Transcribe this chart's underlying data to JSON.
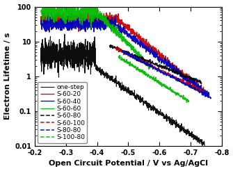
{
  "title": "",
  "xlabel": "Open Circuit Potential / V vs Ag/AgCl",
  "ylabel": "Electron Lifetime / s",
  "xlim": [
    -0.2,
    -0.8
  ],
  "ylim": [
    0.01,
    100
  ],
  "series": [
    {
      "label": "one-step",
      "color": "#000000",
      "linestyle": "solid",
      "lw": 0.8
    },
    {
      "label": "S-60-20",
      "color": "#cc0000",
      "linestyle": "solid",
      "lw": 1.0
    },
    {
      "label": "S-60-40",
      "color": "#0000bb",
      "linestyle": "solid",
      "lw": 1.0
    },
    {
      "label": "S-60-60",
      "color": "#00bb00",
      "linestyle": "solid",
      "lw": 1.0
    },
    {
      "label": "S-60-80",
      "color": "#000000",
      "linestyle": "dashed",
      "lw": 1.1
    },
    {
      "label": "S-60-100",
      "color": "#cc0000",
      "linestyle": "dashed",
      "lw": 1.1
    },
    {
      "label": "S-80-80",
      "color": "#0000bb",
      "linestyle": "dashed",
      "lw": 1.1
    },
    {
      "label": "S-100-80",
      "color": "#00bb00",
      "linestyle": "dashed",
      "lw": 1.1
    }
  ],
  "legend_loc": "lower left",
  "font_size": 6.5,
  "label_font_size": 8.0,
  "tick_font_size": 7.0
}
